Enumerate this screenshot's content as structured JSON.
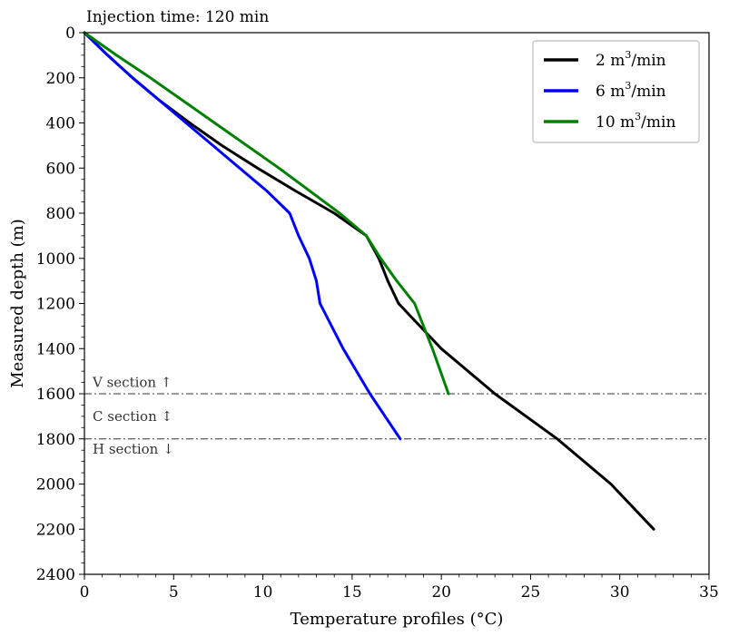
{
  "chart_data": {
    "type": "line",
    "title": "Injection time: 120 min",
    "xlabel": "Temperature profiles (°C)",
    "ylabel": "Measured depth (m)",
    "xlim": [
      0,
      35
    ],
    "ylim": [
      2400,
      0
    ],
    "y_inverted": true,
    "x_ticks": [
      0,
      5,
      10,
      15,
      20,
      25,
      30,
      35
    ],
    "y_ticks": [
      0,
      200,
      400,
      600,
      800,
      1000,
      1200,
      1400,
      1600,
      1800,
      2000,
      2200,
      2400
    ],
    "legend_position": "top-right",
    "series": [
      {
        "name": "2 m3/min",
        "label_main": "2 m",
        "label_sup": "3",
        "label_tail": "/min",
        "color": "#000000",
        "x": [
          0,
          1.3,
          2.7,
          4.2,
          5.9,
          7.7,
          9.7,
          11.8,
          14.0,
          15.8,
          16.5,
          17.0,
          17.6,
          20.0,
          23.0,
          26.5,
          29.5,
          31.9
        ],
        "y": [
          0,
          100,
          200,
          300,
          400,
          500,
          600,
          700,
          800,
          900,
          1000,
          1100,
          1200,
          1400,
          1600,
          1800,
          2000,
          2200
        ]
      },
      {
        "name": "6 m3/min",
        "label_main": "6 m",
        "label_sup": "3",
        "label_tail": "/min",
        "color": "#0000ff",
        "x": [
          0,
          1.3,
          2.7,
          4.2,
          5.7,
          7.2,
          8.7,
          10.2,
          11.5,
          12.0,
          12.6,
          13.0,
          13.2,
          14.5,
          16.0,
          17.7
        ],
        "y": [
          0,
          100,
          200,
          300,
          400,
          500,
          600,
          700,
          800,
          900,
          1000,
          1100,
          1200,
          1400,
          1600,
          1800
        ]
      },
      {
        "name": "10 m3/min",
        "label_main": "10 m",
        "label_sup": "3",
        "label_tail": "/min",
        "color": "#008000",
        "x": [
          0,
          1.8,
          3.7,
          5.5,
          7.3,
          9.1,
          10.9,
          12.6,
          14.3,
          15.8,
          16.6,
          17.5,
          18.5,
          19.5,
          20.4
        ],
        "y": [
          0,
          100,
          200,
          300,
          400,
          500,
          600,
          700,
          800,
          900,
          1000,
          1100,
          1200,
          1400,
          1600
        ]
      }
    ],
    "reference_lines": [
      {
        "depth": 1600,
        "style": "dash-dot"
      },
      {
        "depth": 1800,
        "style": "dash-dot"
      }
    ],
    "annotations": [
      {
        "text": "V section ↑",
        "depth": 1550
      },
      {
        "text": "C section ↕",
        "depth": 1700
      },
      {
        "text": "H section ↓",
        "depth": 1845
      }
    ]
  }
}
